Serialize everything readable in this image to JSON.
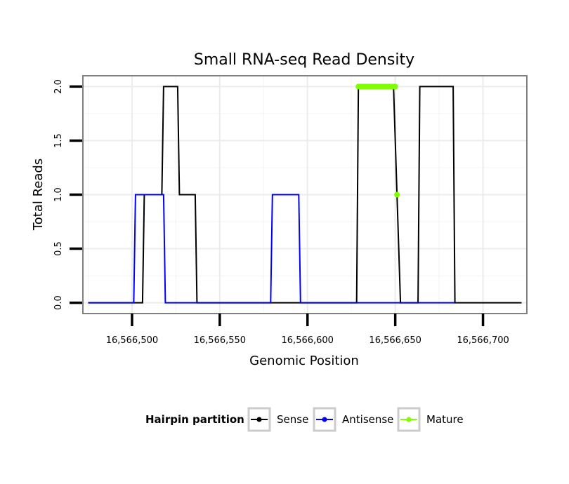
{
  "chart_data": {
    "type": "line",
    "title": "Small RNA-seq Read Density",
    "xlabel": "Genomic Position",
    "ylabel": "Total Reads",
    "xlim": [
      16566472,
      16566725
    ],
    "ylim": [
      -0.1,
      2.1
    ],
    "x_ticks": [
      16566500,
      16566550,
      16566600,
      16566650,
      16566700
    ],
    "x_tick_labels": [
      "16,566,500",
      "16,566,550",
      "16,566,600",
      "16,566,650",
      "16,566,700"
    ],
    "y_ticks": [
      0,
      0.5,
      1,
      1.5,
      2
    ],
    "y_tick_labels": [
      "0.0",
      "0.5",
      "1.0",
      "1.5",
      "2.0"
    ],
    "grid": true,
    "legend": {
      "title": "Hairpin partition",
      "position": "bottom",
      "entries": [
        "Sense",
        "Antisense",
        "Mature"
      ]
    },
    "series": [
      {
        "name": "Sense",
        "color": "#000000",
        "style": "line",
        "points": [
          [
            16566475,
            0
          ],
          [
            16566506,
            0
          ],
          [
            16566507,
            1
          ],
          [
            16566517,
            1
          ],
          [
            16566518,
            2
          ],
          [
            16566526,
            2
          ],
          [
            16566527,
            1
          ],
          [
            16566536,
            1
          ],
          [
            16566537,
            0
          ],
          [
            16566628,
            0
          ],
          [
            16566629,
            2
          ],
          [
            16566649,
            2
          ],
          [
            16566653,
            0
          ],
          [
            16566663,
            0
          ],
          [
            16566664,
            2
          ],
          [
            16566683,
            2
          ],
          [
            16566684,
            0
          ],
          [
            16566722,
            0
          ]
        ]
      },
      {
        "name": "Antisense",
        "color": "#0000ff",
        "style": "line",
        "points": [
          [
            16566475,
            0
          ],
          [
            16566501,
            0
          ],
          [
            16566502,
            1
          ],
          [
            16566518,
            1
          ],
          [
            16566519,
            0
          ],
          [
            16566579,
            0
          ],
          [
            16566580,
            1
          ],
          [
            16566595,
            1
          ],
          [
            16566596,
            0
          ],
          [
            16566684,
            0
          ]
        ]
      },
      {
        "name": "Mature",
        "color": "#7fff00",
        "style": "points",
        "points": [
          [
            16566629,
            2
          ],
          [
            16566630,
            2
          ],
          [
            16566631,
            2
          ],
          [
            16566632,
            2
          ],
          [
            16566633,
            2
          ],
          [
            16566634,
            2
          ],
          [
            16566635,
            2
          ],
          [
            16566636,
            2
          ],
          [
            16566637,
            2
          ],
          [
            16566638,
            2
          ],
          [
            16566639,
            2
          ],
          [
            16566640,
            2
          ],
          [
            16566641,
            2
          ],
          [
            16566642,
            2
          ],
          [
            16566643,
            2
          ],
          [
            16566644,
            2
          ],
          [
            16566645,
            2
          ],
          [
            16566646,
            2
          ],
          [
            16566647,
            2
          ],
          [
            16566648,
            2
          ],
          [
            16566649,
            2
          ],
          [
            16566650,
            2
          ],
          [
            16566651,
            1
          ]
        ]
      }
    ]
  }
}
